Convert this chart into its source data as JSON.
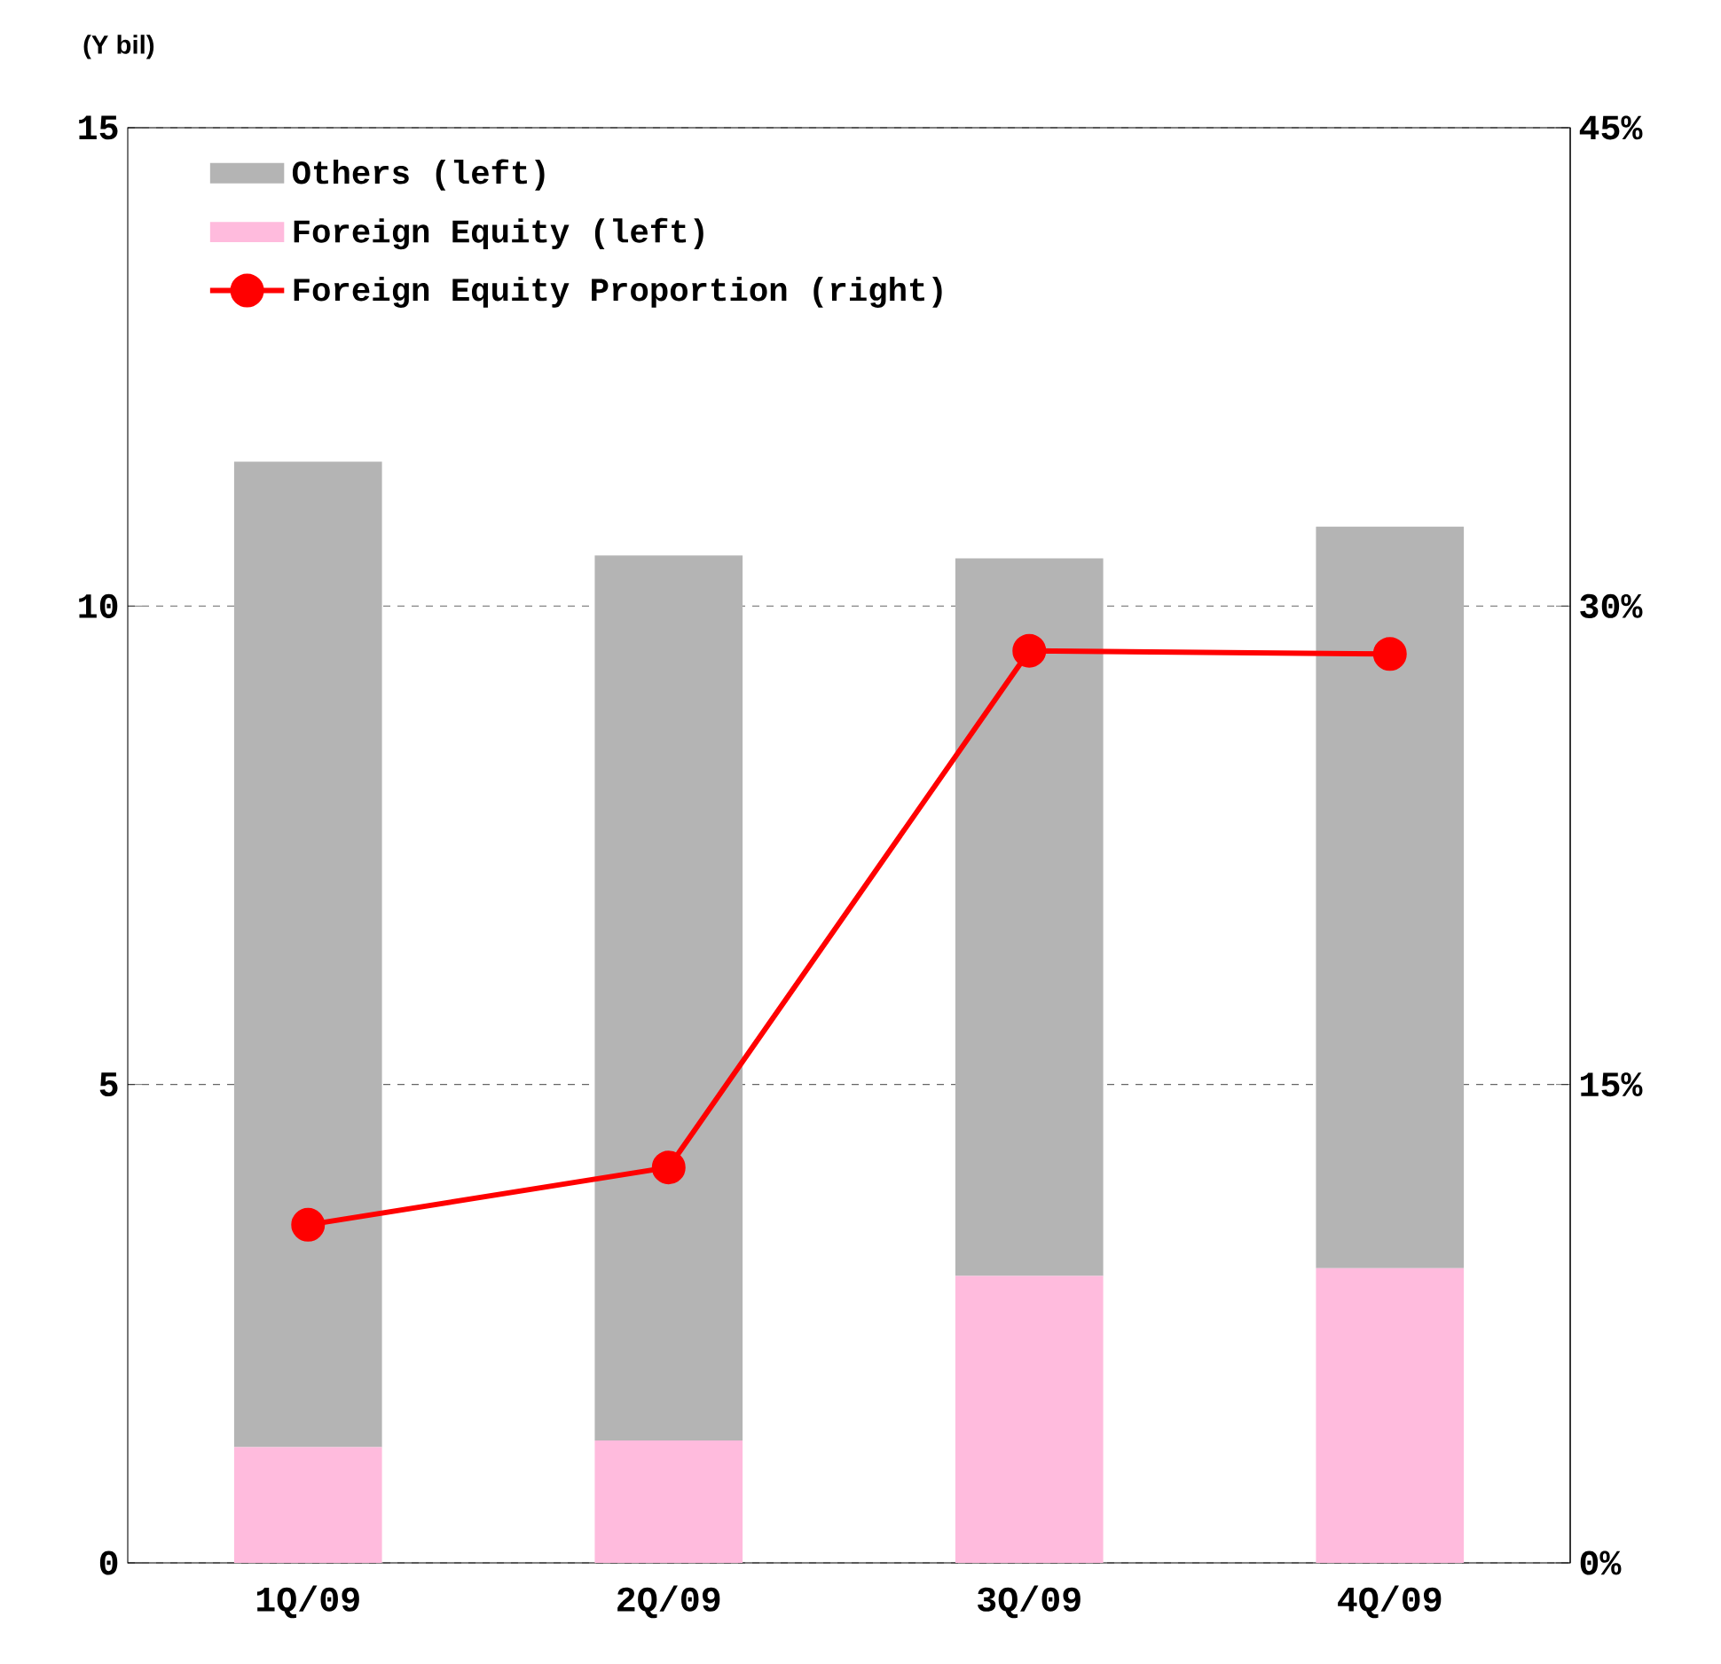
{
  "chart_data": {
    "type": "bar",
    "stacked": true,
    "ylabel": "(Y bil)",
    "categories": [
      "1Q/09",
      "2Q/09",
      "3Q/09",
      "4Q/09"
    ],
    "series": [
      {
        "name": "Foreign Equity (left)",
        "color": "#ffbbdd",
        "values": [
          1.21,
          1.28,
          3.0,
          3.08
        ]
      },
      {
        "name": "Others (left)",
        "color": "#b4b4b4",
        "values": [
          10.3,
          9.25,
          7.5,
          7.75
        ]
      },
      {
        "name": "Foreign Equity Proportion (right)",
        "type": "line",
        "axis": "y2",
        "color": "#ff0000",
        "values": [
          10.6,
          12.4,
          28.6,
          28.5
        ]
      }
    ],
    "ylim": [
      0,
      15
    ],
    "yticks": [
      0,
      5,
      10,
      15
    ],
    "y2lim": [
      0,
      45
    ],
    "y2ticks": [
      {
        "value": 0,
        "label": "0%"
      },
      {
        "value": 15,
        "label": "15%"
      },
      {
        "value": 30,
        "label": "30%"
      },
      {
        "value": 45,
        "label": "45%"
      }
    ],
    "grid": "y",
    "legend": "top left",
    "marker": "circle",
    "line_style": "solid"
  }
}
